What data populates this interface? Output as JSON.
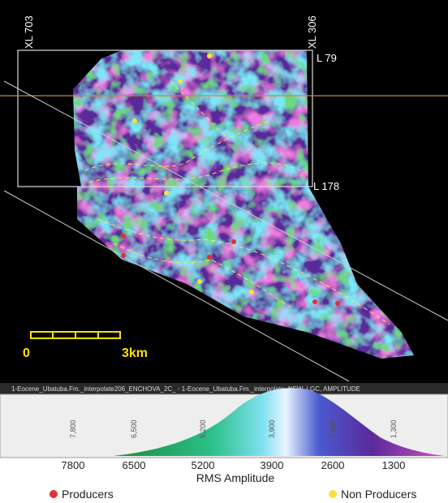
{
  "map": {
    "labels": {
      "xl_left": "XL 703",
      "xl_right": "XL 306",
      "l_top": "L 79",
      "l_bottom": "L 178"
    },
    "scale_bar": {
      "start": "0",
      "end": "3km"
    }
  },
  "colorbar": {
    "header": "1-Eocene_Ubatuba.Fm._interpolate206_ENCHOVA_2C_ - 1-Eocene_Ubatuba.Fm._interpolate, NEW, LGC, AMPLITUDE",
    "inner_labels": [
      "7,800",
      "6,500",
      "5,200",
      "3,900",
      "2,600",
      "1,300"
    ],
    "ticks": [
      "7800",
      "6500",
      "5200",
      "3900",
      "2600",
      "1300"
    ],
    "label": "RMS Amplitude"
  },
  "legend": {
    "producers": "Producers",
    "non_producers": "Non Producers"
  }
}
